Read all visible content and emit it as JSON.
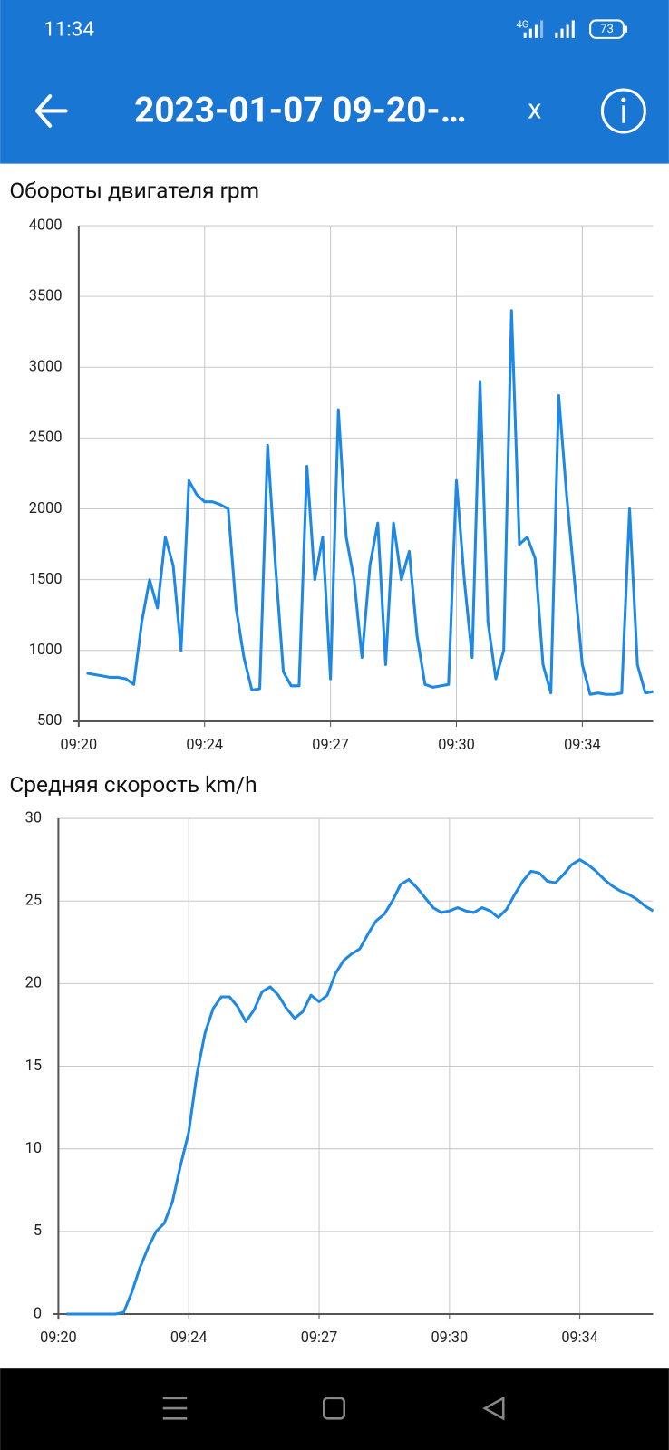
{
  "status_bar": {
    "time": "11:34",
    "network": "4G",
    "battery": "73"
  },
  "app_bar": {
    "title": "2023-01-07 09-20-…",
    "close": "x"
  },
  "chart_data": [
    {
      "type": "line",
      "title": "Обороты двигателя  rpm",
      "color": "#1e88e5",
      "grid": true,
      "categories": [
        "09:20",
        null,
        null,
        null,
        null,
        null,
        null,
        null,
        null,
        null,
        null,
        null,
        null,
        null,
        null,
        null,
        "09:24",
        null,
        null,
        null,
        null,
        null,
        null,
        null,
        null,
        null,
        null,
        null,
        null,
        null,
        null,
        null,
        "09:27",
        null,
        null,
        null,
        null,
        null,
        null,
        null,
        null,
        null,
        null,
        null,
        null,
        null,
        null,
        null,
        "09:30",
        null,
        null,
        null,
        null,
        null,
        null,
        null,
        null,
        null,
        null,
        null,
        null,
        null,
        null,
        null,
        "09:34",
        null,
        null,
        null,
        null,
        null,
        null,
        null,
        null,
        null
      ],
      "values": [
        null,
        840,
        830,
        820,
        810,
        810,
        800,
        760,
        1200,
        1500,
        1300,
        1800,
        1600,
        1000,
        2200,
        2100,
        2050,
        2050,
        2030,
        2000,
        1300,
        950,
        720,
        730,
        2450,
        1600,
        850,
        750,
        750,
        2300,
        1500,
        1800,
        800,
        2700,
        1800,
        1500,
        950,
        1600,
        1900,
        900,
        1900,
        1500,
        1700,
        1100,
        760,
        740,
        750,
        760,
        2200,
        1500,
        950,
        2900,
        1200,
        800,
        1000,
        3400,
        1750,
        1800,
        1650,
        900,
        700,
        2800,
        2100,
        1500,
        900,
        690,
        700,
        690,
        690,
        700,
        2000,
        900,
        700,
        710
      ],
      "ylim": [
        500,
        4000
      ],
      "yticks": [
        500,
        1000,
        1500,
        2000,
        2500,
        3000,
        3500,
        4000
      ]
    },
    {
      "type": "line",
      "title": "Средняя скорость  km/h",
      "color": "#1e88e5",
      "grid": true,
      "categories": [
        "09:20",
        null,
        null,
        null,
        null,
        null,
        null,
        null,
        null,
        null,
        null,
        null,
        null,
        null,
        null,
        null,
        "09:24",
        null,
        null,
        null,
        null,
        null,
        null,
        null,
        null,
        null,
        null,
        null,
        null,
        null,
        null,
        null,
        "09:27",
        null,
        null,
        null,
        null,
        null,
        null,
        null,
        null,
        null,
        null,
        null,
        null,
        null,
        null,
        null,
        "09:30",
        null,
        null,
        null,
        null,
        null,
        null,
        null,
        null,
        null,
        null,
        null,
        null,
        null,
        null,
        null,
        "09:34",
        null,
        null,
        null,
        null,
        null,
        null,
        null,
        null,
        null
      ],
      "values": [
        null,
        0,
        0,
        0,
        0,
        0,
        0,
        0,
        0.1,
        1.3,
        2.8,
        4,
        5,
        5.5,
        6.8,
        9,
        11,
        14.5,
        17,
        18.5,
        19.2,
        19.2,
        18.6,
        17.7,
        18.4,
        19.5,
        19.8,
        19.3,
        18.5,
        17.9,
        18.3,
        19.3,
        18.9,
        19.3,
        20.6,
        21.4,
        21.8,
        22.1,
        23,
        23.8,
        24.2,
        25,
        26,
        26.3,
        25.8,
        25.2,
        24.6,
        24.3,
        24.4,
        24.6,
        24.4,
        24.3,
        24.6,
        24.4,
        24,
        24.5,
        25.4,
        26.2,
        26.8,
        26.7,
        26.2,
        26.1,
        26.6,
        27.2,
        27.5,
        27.2,
        26.8,
        26.3,
        25.9,
        25.6,
        25.4,
        25.1,
        24.7,
        24.4
      ],
      "ylim": [
        0,
        30
      ],
      "yticks": [
        0,
        5,
        10,
        15,
        20,
        25,
        30
      ]
    }
  ]
}
